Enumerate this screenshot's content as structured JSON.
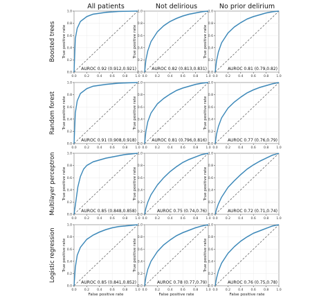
{
  "chart_data": {
    "type": "line",
    "columns": [
      "All patients",
      "Not delirious",
      "No prior delirium"
    ],
    "rows": [
      "Boosted trees",
      "Random forest",
      "Multilayer perceptron",
      "Logistic regression"
    ],
    "x_axis_label": "False positive rate",
    "y_axis_label": "True positive rate",
    "xlim": [
      0,
      1
    ],
    "ylim": [
      0,
      1
    ],
    "x_ticks": [
      "0.0",
      "0.2",
      "0.4",
      "0.6",
      "0.8",
      "1.0"
    ],
    "y_ticks": [
      "0.0",
      "0.2",
      "0.4",
      "0.6",
      "0.8",
      "1.0"
    ],
    "grid": true,
    "roc_color": "#3a87b8",
    "band_color": "#a9c8df",
    "chance_line_color": "#555555",
    "panels": [
      {
        "row": 0,
        "col": 0,
        "auroc_label": "AUROC 0.92 (0.912,0.921)",
        "x": [
          0,
          0.02,
          0.05,
          0.1,
          0.2,
          0.3,
          0.5,
          0.7,
          1.0
        ],
        "y": [
          0,
          0.55,
          0.72,
          0.83,
          0.91,
          0.95,
          0.98,
          0.995,
          1.0
        ]
      },
      {
        "row": 0,
        "col": 1,
        "auroc_label": "AUROC 0.82 (0.813,0.831)",
        "x": [
          0,
          0.02,
          0.05,
          0.1,
          0.2,
          0.3,
          0.4,
          0.5,
          0.6,
          0.7,
          0.8,
          0.9,
          1.0
        ],
        "y": [
          0,
          0.2,
          0.35,
          0.5,
          0.66,
          0.76,
          0.83,
          0.88,
          0.92,
          0.95,
          0.97,
          0.99,
          1.0
        ]
      },
      {
        "row": 0,
        "col": 2,
        "auroc_label": "AUROC 0.81 (0.79,0.82)",
        "x": [
          0,
          0.02,
          0.05,
          0.1,
          0.2,
          0.3,
          0.4,
          0.5,
          0.6,
          0.7,
          0.8,
          0.9,
          1.0
        ],
        "y": [
          0,
          0.18,
          0.33,
          0.48,
          0.64,
          0.74,
          0.81,
          0.87,
          0.91,
          0.94,
          0.97,
          0.99,
          1.0
        ]
      },
      {
        "row": 1,
        "col": 0,
        "auroc_label": "AUROC 0.91 (0.908,0.918)",
        "x": [
          0,
          0.02,
          0.05,
          0.1,
          0.2,
          0.3,
          0.5,
          0.7,
          1.0
        ],
        "y": [
          0,
          0.5,
          0.7,
          0.82,
          0.9,
          0.94,
          0.97,
          0.99,
          1.0
        ]
      },
      {
        "row": 1,
        "col": 1,
        "auroc_label": "AUROC 0.81 (0.796,0.816)",
        "x": [
          0,
          0.02,
          0.05,
          0.1,
          0.2,
          0.3,
          0.4,
          0.5,
          0.6,
          0.7,
          0.8,
          0.9,
          1.0
        ],
        "y": [
          0,
          0.2,
          0.36,
          0.5,
          0.65,
          0.74,
          0.81,
          0.87,
          0.91,
          0.94,
          0.97,
          0.99,
          1.0
        ]
      },
      {
        "row": 1,
        "col": 2,
        "auroc_label": "AUROC 0.77 (0.76,0.79)",
        "x": [
          0,
          0.02,
          0.05,
          0.1,
          0.2,
          0.3,
          0.4,
          0.5,
          0.6,
          0.7,
          0.8,
          0.9,
          1.0
        ],
        "y": [
          0,
          0.15,
          0.28,
          0.42,
          0.58,
          0.68,
          0.76,
          0.83,
          0.88,
          0.92,
          0.95,
          0.98,
          1.0
        ]
      },
      {
        "row": 2,
        "col": 0,
        "auroc_label": "AUROC 0.85 (0.848,0.858)",
        "x": [
          0,
          0.03,
          0.06,
          0.1,
          0.15,
          0.2,
          0.3,
          0.4,
          0.5,
          0.6,
          0.7,
          0.8,
          0.9,
          1.0
        ],
        "y": [
          0,
          0.22,
          0.45,
          0.62,
          0.74,
          0.8,
          0.86,
          0.89,
          0.92,
          0.94,
          0.96,
          0.98,
          0.99,
          1.0
        ]
      },
      {
        "row": 2,
        "col": 1,
        "auroc_label": "AUROC 0.75 (0.74,0.76)",
        "x": [
          0,
          0.02,
          0.05,
          0.1,
          0.2,
          0.3,
          0.4,
          0.5,
          0.6,
          0.7,
          0.8,
          0.9,
          1.0
        ],
        "y": [
          0,
          0.1,
          0.2,
          0.32,
          0.48,
          0.6,
          0.7,
          0.78,
          0.85,
          0.9,
          0.94,
          0.98,
          1.0
        ]
      },
      {
        "row": 2,
        "col": 2,
        "auroc_label": "AUROC 0.72 (0.71,0.74)",
        "x": [
          0,
          0.02,
          0.05,
          0.1,
          0.2,
          0.3,
          0.4,
          0.5,
          0.6,
          0.7,
          0.8,
          0.9,
          1.0
        ],
        "y": [
          0,
          0.08,
          0.17,
          0.28,
          0.44,
          0.55,
          0.65,
          0.74,
          0.81,
          0.87,
          0.92,
          0.97,
          1.0
        ]
      },
      {
        "row": 3,
        "col": 0,
        "auroc_label": "AUROC 0.85 (0.841,0.852)",
        "x": [
          0,
          0.02,
          0.05,
          0.1,
          0.2,
          0.3,
          0.4,
          0.5,
          0.6,
          0.7,
          0.8,
          0.9,
          1.0
        ],
        "y": [
          0,
          0.3,
          0.5,
          0.63,
          0.76,
          0.83,
          0.88,
          0.92,
          0.95,
          0.97,
          0.98,
          0.99,
          1.0
        ]
      },
      {
        "row": 3,
        "col": 1,
        "auroc_label": "AUROC 0.78 (0.77,0.79)",
        "x": [
          0,
          0.02,
          0.05,
          0.1,
          0.2,
          0.3,
          0.4,
          0.5,
          0.6,
          0.7,
          0.8,
          0.9,
          1.0
        ],
        "y": [
          0,
          0.14,
          0.27,
          0.4,
          0.56,
          0.67,
          0.75,
          0.82,
          0.87,
          0.91,
          0.95,
          0.98,
          1.0
        ]
      },
      {
        "row": 3,
        "col": 2,
        "auroc_label": "AUROC 0.76 (0.75,0.78)",
        "x": [
          0,
          0.02,
          0.05,
          0.1,
          0.2,
          0.3,
          0.4,
          0.5,
          0.6,
          0.7,
          0.8,
          0.9,
          1.0
        ],
        "y": [
          0,
          0.12,
          0.24,
          0.37,
          0.53,
          0.64,
          0.73,
          0.8,
          0.86,
          0.9,
          0.94,
          0.98,
          1.0
        ]
      }
    ]
  }
}
